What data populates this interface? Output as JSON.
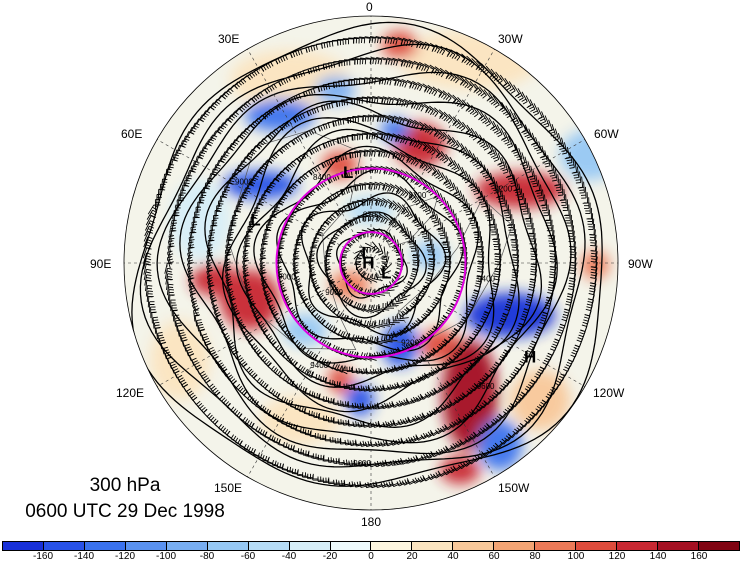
{
  "map": {
    "level_label": "300 hPa",
    "time_label": "0600 UTC 29 Dec 1998",
    "longitude_labels": [
      "0",
      "30W",
      "60W",
      "90W",
      "120W",
      "150W",
      "180",
      "150E",
      "120E",
      "90E",
      "60E",
      "30E"
    ],
    "contour_labels": [
      "8400",
      "8700",
      "9000",
      "9200",
      "9400",
      "9600"
    ],
    "pressure_centers": [
      {
        "label": "L",
        "lon_deg": 15,
        "lat_deg": 62
      },
      {
        "label": "L",
        "lon_deg": 45,
        "lat_deg": 88
      },
      {
        "label": "L",
        "lon_deg": -135,
        "lat_deg": 83
      },
      {
        "label": "L",
        "lon_deg": 72,
        "lat_deg": 52
      },
      {
        "label": "H",
        "lon_deg": 155,
        "lat_deg": 88
      },
      {
        "label": "H",
        "lon_deg": -122,
        "lat_deg": 34
      }
    ],
    "reference_circles_lat_deg": [
      80,
      60
    ],
    "colors": {
      "reference_circle": "#e000e0",
      "contour": "#000000",
      "continent": "#555555"
    }
  },
  "colorbar": {
    "tick_labels": [
      "-160",
      "-140",
      "-120",
      "-100",
      "-80",
      "-60",
      "-40",
      "-20",
      "0",
      "20",
      "40",
      "60",
      "80",
      "100",
      "120",
      "140",
      "160"
    ],
    "colors": [
      "#1830d8",
      "#2852e8",
      "#3a72ee",
      "#5a92f0",
      "#78aef2",
      "#96c8f4",
      "#b6dcf6",
      "#d6eef8",
      "#eefafc",
      "#fdf6e0",
      "#fbe4c0",
      "#f8c89a",
      "#f3a474",
      "#ec7a58",
      "#de4c3c",
      "#c82832",
      "#a41022",
      "#800412"
    ]
  }
}
